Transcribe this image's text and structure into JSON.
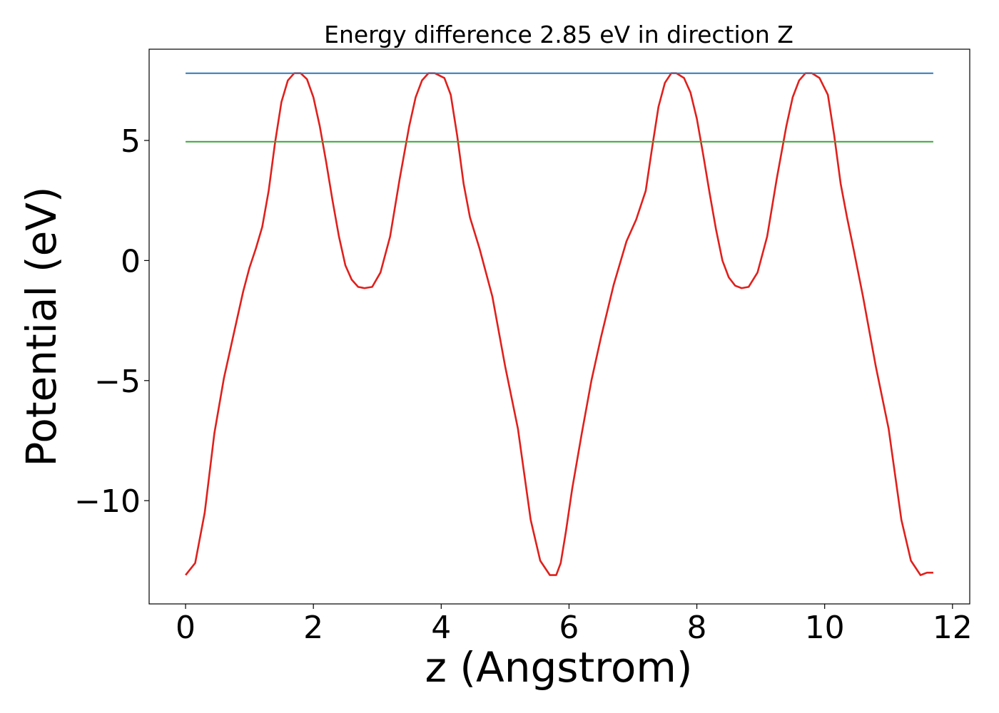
{
  "colors": {
    "potential": "#e0201c",
    "upper_level": "#2e79b8",
    "lower_level": "#3aa63a",
    "frame": "#000000"
  },
  "chart_data": {
    "type": "line",
    "title": "Energy difference 2.85 eV in direction Z",
    "xlabel": "z (Angstrom)",
    "ylabel": "Potential (eV)",
    "xlim": [
      -0.57,
      12.27
    ],
    "ylim": [
      -14.3,
      8.8
    ],
    "xticks": [
      0,
      2,
      4,
      6,
      8,
      10,
      12
    ],
    "xtick_labels": [
      "0",
      "2",
      "4",
      "6",
      "8",
      "10",
      "12"
    ],
    "yticks": [
      -10,
      -5,
      0,
      5
    ],
    "ytick_labels": [
      "−10",
      "−5",
      "0",
      "5"
    ],
    "grid": false,
    "legend": "none",
    "series": [
      {
        "key": "potential",
        "x": [
          0.0,
          0.15,
          0.3,
          0.45,
          0.6,
          0.75,
          0.9,
          1.0,
          1.1,
          1.2,
          1.3,
          1.4,
          1.5,
          1.6,
          1.7,
          1.8,
          1.9,
          2.0,
          2.1,
          2.2,
          2.3,
          2.4,
          2.5,
          2.6,
          2.7,
          2.8,
          2.92,
          3.05,
          3.2,
          3.35,
          3.5,
          3.6,
          3.7,
          3.8,
          3.9,
          4.05,
          4.15,
          4.25,
          4.35,
          4.45,
          4.6,
          4.8,
          5.0,
          5.2,
          5.4,
          5.55,
          5.7,
          5.8,
          5.87,
          5.95,
          6.05,
          6.2,
          6.35,
          6.5,
          6.7,
          6.9,
          7.05,
          7.2,
          7.3,
          7.4,
          7.5,
          7.6,
          7.68,
          7.8,
          7.9,
          8.0,
          8.1,
          8.2,
          8.3,
          8.4,
          8.5,
          8.6,
          8.7,
          8.81,
          8.95,
          9.1,
          9.25,
          9.4,
          9.5,
          9.6,
          9.7,
          9.8,
          9.92,
          10.05,
          10.15,
          10.25,
          10.35,
          10.45,
          10.6,
          10.8,
          11.0,
          11.2,
          11.35,
          11.5,
          11.6,
          11.7
        ],
        "values": [
          -13.1,
          -12.6,
          -10.5,
          -7.2,
          -4.9,
          -3.1,
          -1.3,
          -0.3,
          0.5,
          1.4,
          2.9,
          4.9,
          6.6,
          7.5,
          7.8,
          7.8,
          7.55,
          6.8,
          5.6,
          4.1,
          2.5,
          1.0,
          -0.2,
          -0.8,
          -1.1,
          -1.15,
          -1.1,
          -0.5,
          1.0,
          3.4,
          5.6,
          6.8,
          7.5,
          7.8,
          7.8,
          7.6,
          6.9,
          5.2,
          3.2,
          1.8,
          0.5,
          -1.5,
          -4.4,
          -7.0,
          -10.8,
          -12.5,
          -13.1,
          -13.1,
          -12.6,
          -11.3,
          -9.5,
          -7.2,
          -5.0,
          -3.2,
          -1.0,
          0.8,
          1.7,
          2.9,
          4.7,
          6.4,
          7.4,
          7.8,
          7.8,
          7.6,
          7.0,
          5.9,
          4.4,
          2.8,
          1.3,
          0.0,
          -0.7,
          -1.05,
          -1.15,
          -1.1,
          -0.5,
          1.0,
          3.4,
          5.6,
          6.8,
          7.5,
          7.8,
          7.8,
          7.6,
          6.9,
          5.2,
          3.2,
          1.8,
          0.5,
          -1.5,
          -4.4,
          -7.0,
          -10.8,
          -12.5,
          -13.1,
          -13.0,
          -13.0
        ]
      },
      {
        "key": "upper_level",
        "x": [
          0.0,
          11.7
        ],
        "values": [
          7.8,
          7.8
        ]
      },
      {
        "key": "lower_level",
        "x": [
          0.0,
          11.7
        ],
        "values": [
          4.95,
          4.95
        ]
      }
    ]
  }
}
